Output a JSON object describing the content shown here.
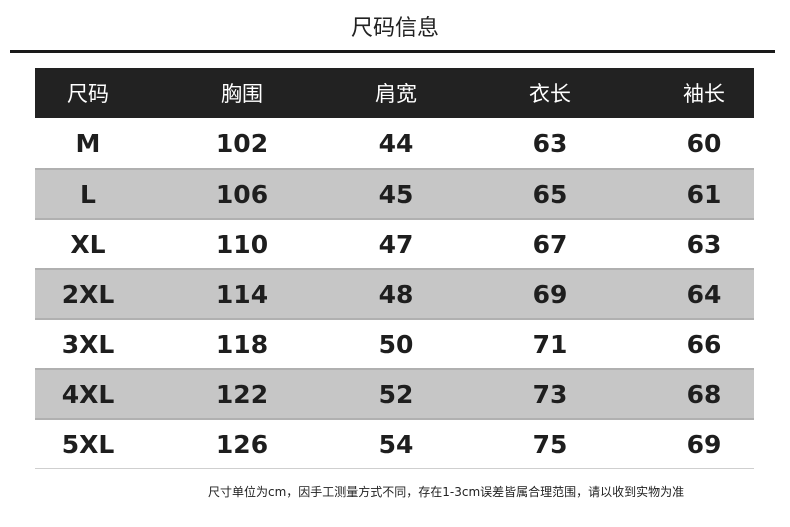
{
  "title": "尺码信息",
  "table": {
    "headers": [
      "尺码",
      "胸围",
      "肩宽",
      "衣长",
      "袖长"
    ],
    "rows": [
      [
        "M",
        "102",
        "44",
        "63",
        "60"
      ],
      [
        "L",
        "106",
        "45",
        "65",
        "61"
      ],
      [
        "XL",
        "110",
        "47",
        "67",
        "63"
      ],
      [
        "2XL",
        "114",
        "48",
        "69",
        "64"
      ],
      [
        "3XL",
        "118",
        "50",
        "71",
        "66"
      ],
      [
        "4XL",
        "122",
        "52",
        "73",
        "68"
      ],
      [
        "5XL",
        "126",
        "54",
        "75",
        "69"
      ]
    ]
  },
  "note": "尺寸单位为cm，因手工测量方式不同，存在1-3cm误差皆属合理范围，请以收到实物为准",
  "colors": {
    "header_bg": "#222222",
    "alt_row_bg": "#c6c6c6"
  }
}
